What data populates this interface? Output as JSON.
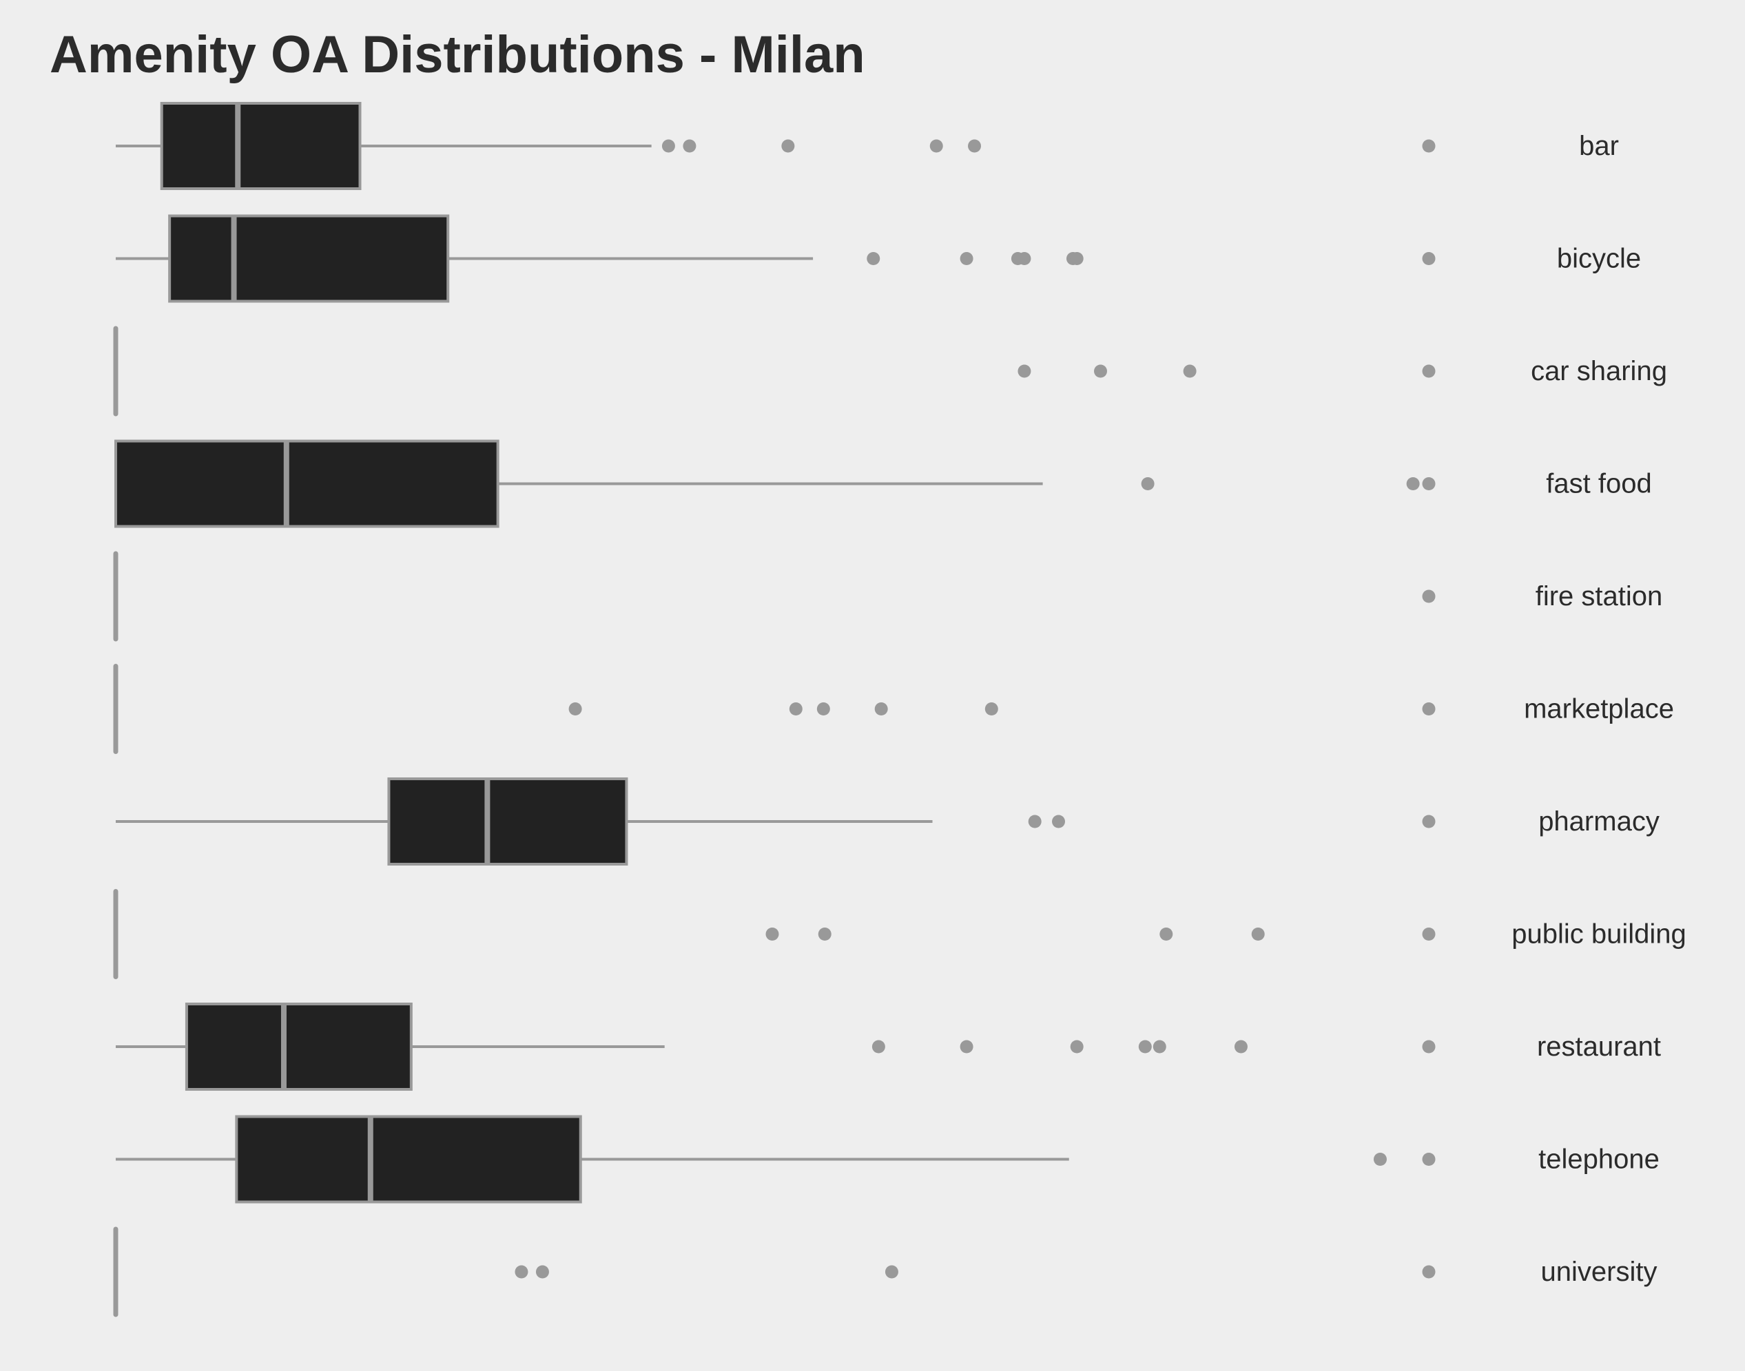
{
  "chart_data": {
    "type": "boxplot",
    "orientation": "horizontal",
    "title": "Amenity OA Distributions - Milan",
    "xlabel": "",
    "ylabel": "",
    "xlim": [
      0,
      1
    ],
    "grid": false,
    "legend": "none",
    "category_label_position": "right",
    "colors": {
      "background": "#eeeeee",
      "box_fill": "#222222",
      "stroke": "#999999",
      "outlier": "#999999",
      "text": "#2b2b2b"
    },
    "categories": [
      "bar",
      "bicycle",
      "car sharing",
      "fast food",
      "fire station",
      "marketplace",
      "pharmacy",
      "public building",
      "restaurant",
      "telephone",
      "university"
    ],
    "boxes": [
      {
        "category": "bar",
        "whisker_low": 0.0,
        "q1": 0.035,
        "median": 0.093,
        "q3": 0.186,
        "whisker_high": 0.408,
        "outliers": [
          0.421,
          0.437,
          0.512,
          0.625,
          0.654,
          1.0
        ]
      },
      {
        "category": "bicycle",
        "whisker_low": 0.0,
        "q1": 0.041,
        "median": 0.09,
        "q3": 0.253,
        "whisker_high": 0.531,
        "outliers": [
          0.577,
          0.648,
          0.687,
          0.692,
          0.729,
          0.732,
          1.0
        ]
      },
      {
        "category": "car sharing",
        "whisker_low": 0.0,
        "q1": 0.0,
        "median": 0.0,
        "q3": 0.0,
        "whisker_high": 0.0,
        "outliers": [
          0.692,
          0.75,
          0.818,
          1.0
        ]
      },
      {
        "category": "fast food",
        "whisker_low": 0.0,
        "q1": 0.0,
        "median": 0.13,
        "q3": 0.291,
        "whisker_high": 0.706,
        "outliers": [
          0.786,
          0.988,
          1.0
        ]
      },
      {
        "category": "fire station",
        "whisker_low": 0.0,
        "q1": 0.0,
        "median": 0.0,
        "q3": 0.0,
        "whisker_high": 0.0,
        "outliers": [
          1.0
        ]
      },
      {
        "category": "marketplace",
        "whisker_low": 0.0,
        "q1": 0.0,
        "median": 0.0,
        "q3": 0.0,
        "whisker_high": 0.0,
        "outliers": [
          0.35,
          0.518,
          0.539,
          0.583,
          0.667,
          1.0
        ]
      },
      {
        "category": "pharmacy",
        "whisker_low": 0.0,
        "q1": 0.208,
        "median": 0.283,
        "q3": 0.389,
        "whisker_high": 0.622,
        "outliers": [
          0.7,
          0.718,
          1.0
        ]
      },
      {
        "category": "public building",
        "whisker_low": 0.0,
        "q1": 0.0,
        "median": 0.0,
        "q3": 0.0,
        "whisker_high": 0.0,
        "outliers": [
          0.5,
          0.54,
          0.8,
          0.87,
          1.0
        ]
      },
      {
        "category": "restaurant",
        "whisker_low": 0.0,
        "q1": 0.054,
        "median": 0.128,
        "q3": 0.225,
        "whisker_high": 0.418,
        "outliers": [
          0.581,
          0.648,
          0.732,
          0.784,
          0.795,
          0.857,
          1.0
        ]
      },
      {
        "category": "telephone",
        "whisker_low": 0.0,
        "q1": 0.092,
        "median": 0.194,
        "q3": 0.354,
        "whisker_high": 0.726,
        "outliers": [
          0.963,
          1.0
        ]
      },
      {
        "category": "university",
        "whisker_low": 0.0,
        "q1": 0.0,
        "median": 0.0,
        "q3": 0.0,
        "whisker_high": 0.0,
        "outliers": [
          0.309,
          0.325,
          0.591,
          1.0
        ]
      }
    ]
  }
}
